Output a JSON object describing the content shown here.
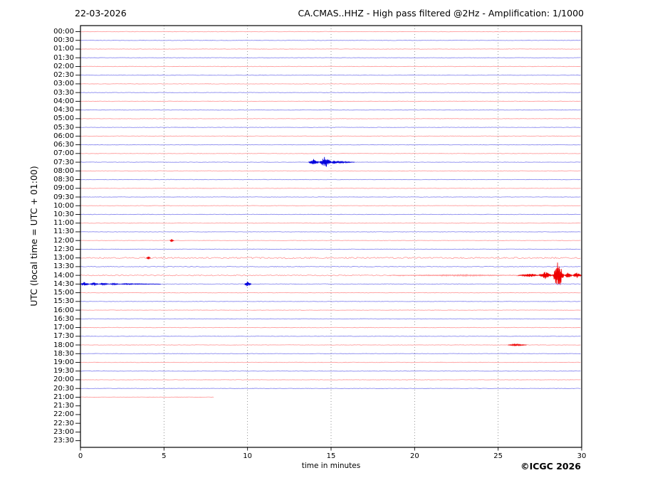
{
  "footer": {
    "copyright": "©ICGC 2026"
  },
  "chart_data": {
    "type": "line",
    "kind": "helicorder-seismogram",
    "date": "22-03-2026",
    "title": "CA.CMAS..HHZ - High pass filtered @2Hz - Amplification: 1/1000",
    "xlabel": "time in minutes",
    "ylabel": "UTC (local time = UTC + 01:00)",
    "x_range": [
      0,
      30
    ],
    "x_ticks": [
      0,
      5,
      10,
      15,
      20,
      25,
      30
    ],
    "gridline_minutes": [
      5,
      10,
      15,
      20,
      25
    ],
    "minutes_per_row": 30,
    "colors": {
      "red_base": "#ff9999",
      "red_event": "#ee0000",
      "blue_base": "#8585ee",
      "blue_event": "#0000dd",
      "grid": "#777777",
      "frame": "#000000"
    },
    "rows": [
      {
        "label": "00:00",
        "color": "red"
      },
      {
        "label": "00:30",
        "color": "blue"
      },
      {
        "label": "01:00",
        "color": "red"
      },
      {
        "label": "01:30",
        "color": "blue"
      },
      {
        "label": "02:00",
        "color": "red"
      },
      {
        "label": "02:30",
        "color": "blue"
      },
      {
        "label": "03:00",
        "color": "red"
      },
      {
        "label": "03:30",
        "color": "blue"
      },
      {
        "label": "04:00",
        "color": "red"
      },
      {
        "label": "04:30",
        "color": "blue"
      },
      {
        "label": "05:00",
        "color": "red"
      },
      {
        "label": "05:30",
        "color": "blue"
      },
      {
        "label": "06:00",
        "color": "red"
      },
      {
        "label": "06:30",
        "color": "blue"
      },
      {
        "label": "07:00",
        "color": "red"
      },
      {
        "label": "07:30",
        "color": "blue",
        "events": [
          {
            "t0": 13.65,
            "peak": 13.95,
            "t1": 14.3,
            "amp": 4.5
          },
          {
            "t0": 14.3,
            "peak": 14.6,
            "t1": 15.05,
            "amp": 9
          },
          {
            "t0": 15.0,
            "peak": 15.15,
            "t1": 16.4,
            "amp": 2.2
          }
        ]
      },
      {
        "label": "08:00",
        "color": "red"
      },
      {
        "label": "08:30",
        "color": "blue"
      },
      {
        "label": "09:00",
        "color": "red"
      },
      {
        "label": "09:30",
        "color": "blue"
      },
      {
        "label": "10:00",
        "color": "red"
      },
      {
        "label": "10:30",
        "color": "blue"
      },
      {
        "label": "11:00",
        "color": "red"
      },
      {
        "label": "11:30",
        "color": "blue"
      },
      {
        "label": "12:00",
        "color": "red",
        "events": [
          {
            "t0": 5.35,
            "peak": 5.45,
            "t1": 5.6,
            "amp": 2.3
          }
        ]
      },
      {
        "label": "12:30",
        "color": "blue"
      },
      {
        "label": "13:00",
        "color": "red",
        "noise": 1.0,
        "events": [
          {
            "t0": 3.95,
            "peak": 4.05,
            "t1": 4.2,
            "amp": 2.6
          }
        ]
      },
      {
        "label": "13:30",
        "color": "blue",
        "noise": 0.5
      },
      {
        "label": "14:00",
        "color": "red",
        "noise": 0.7,
        "events": [
          {
            "t0": 18.5,
            "peak": 23.0,
            "t1": 26.2,
            "amp": 1.1,
            "soft": true
          },
          {
            "t0": 26.2,
            "peak": 27.0,
            "t1": 27.4,
            "amp": 2.6
          },
          {
            "t0": 27.4,
            "peak": 27.85,
            "t1": 28.25,
            "amp": 5.5
          },
          {
            "t0": 28.25,
            "peak": 28.6,
            "t1": 28.95,
            "amp": 21
          },
          {
            "t0": 28.95,
            "peak": 29.15,
            "t1": 29.45,
            "amp": 4.5
          },
          {
            "t0": 29.45,
            "peak": 29.7,
            "t1": 30.0,
            "amp": 4.5
          }
        ]
      },
      {
        "label": "14:30",
        "color": "blue",
        "noise": 0.4,
        "events": [
          {
            "t0": 0.0,
            "peak": 0.2,
            "t1": 0.55,
            "amp": 3.2
          },
          {
            "t0": 0.55,
            "peak": 0.8,
            "t1": 1.1,
            "amp": 2.6
          },
          {
            "t0": 1.1,
            "peak": 1.3,
            "t1": 1.75,
            "amp": 2.2
          },
          {
            "t0": 1.75,
            "peak": 1.95,
            "t1": 2.4,
            "amp": 1.4
          },
          {
            "t0": 2.4,
            "peak": 2.6,
            "t1": 4.8,
            "amp": 0.8
          },
          {
            "t0": 9.82,
            "peak": 10.0,
            "t1": 10.22,
            "amp": 4.2
          }
        ]
      },
      {
        "label": "15:00",
        "color": "red"
      },
      {
        "label": "15:30",
        "color": "blue"
      },
      {
        "label": "16:00",
        "color": "red"
      },
      {
        "label": "16:30",
        "color": "blue"
      },
      {
        "label": "17:00",
        "color": "red"
      },
      {
        "label": "17:30",
        "color": "blue"
      },
      {
        "label": "18:00",
        "color": "red",
        "events": [
          {
            "t0": 25.6,
            "peak": 26.0,
            "t1": 26.7,
            "amp": 1.7
          }
        ]
      },
      {
        "label": "18:30",
        "color": "blue"
      },
      {
        "label": "19:00",
        "color": "red"
      },
      {
        "label": "19:30",
        "color": "blue"
      },
      {
        "label": "20:00",
        "color": "red"
      },
      {
        "label": "20:30",
        "color": "blue"
      },
      {
        "label": "21:00",
        "color": "red",
        "end": 8
      },
      {
        "label": "21:30",
        "color": "blue",
        "trace": false
      },
      {
        "label": "22:00",
        "color": "red",
        "trace": false
      },
      {
        "label": "22:30",
        "color": "blue",
        "trace": false
      },
      {
        "label": "23:00",
        "color": "red",
        "trace": false
      },
      {
        "label": "23:30",
        "color": "blue",
        "trace": false
      }
    ]
  }
}
